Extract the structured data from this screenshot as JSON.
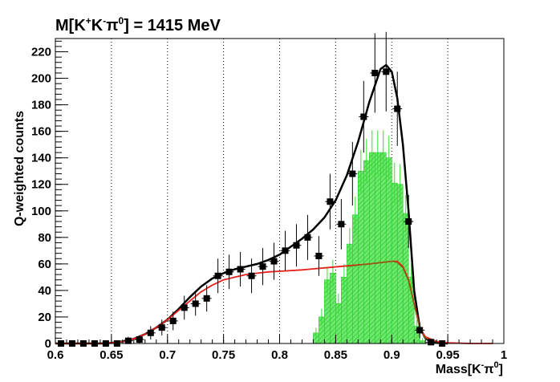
{
  "chart_data": {
    "type": "scatter",
    "title": {
      "base": "M[K",
      "sup1": "+",
      "mid1": "K",
      "sup2": "-",
      "mid2": "π",
      "sup3": "0",
      "end": "] = 1415 MeV"
    },
    "xlabel": {
      "base": "Mass[K",
      "sup1": "-",
      "mid": "π",
      "sup2": "0",
      "end": "]"
    },
    "ylabel": "Q-weighted counts",
    "xlim": [
      0.6,
      1.0
    ],
    "ylim": [
      0,
      230
    ],
    "x_ticks": [
      "0.6",
      "0.65",
      "0.7",
      "0.75",
      "0.8",
      "0.85",
      "0.9",
      "0.95",
      "1"
    ],
    "y_ticks": [
      "0",
      "20",
      "40",
      "60",
      "80",
      "100",
      "120",
      "140",
      "160",
      "180",
      "200",
      "220"
    ],
    "grid": "vertical dotted",
    "colors": {
      "data": "#000000",
      "total_fit": "#000000",
      "background_fit": "#e8201c",
      "histogram": "#33dd33",
      "signal_fit": "#7a6b10"
    },
    "series": [
      {
        "kind": "points",
        "x": [
          0.605,
          0.615,
          0.625,
          0.635,
          0.645,
          0.655,
          0.665,
          0.675,
          0.685,
          0.695,
          0.705,
          0.715,
          0.725,
          0.735,
          0.745,
          0.755,
          0.765,
          0.775,
          0.785,
          0.795,
          0.805,
          0.815,
          0.825,
          0.835,
          0.845,
          0.855,
          0.865,
          0.875,
          0.885,
          0.895,
          0.905,
          0.915,
          0.925,
          0.935,
          0.945
        ],
        "y": [
          0,
          0,
          0,
          0,
          0,
          0,
          2,
          3,
          8,
          12,
          17,
          27,
          30,
          34,
          51,
          54,
          56,
          51,
          58,
          62,
          70,
          74,
          80,
          66,
          107,
          90,
          128,
          171,
          204,
          205,
          177,
          92,
          10,
          1,
          0
        ],
        "yerr": [
          1,
          1,
          1,
          1,
          1,
          1,
          3,
          3,
          5,
          6,
          7,
          9,
          9,
          10,
          13,
          13,
          13,
          13,
          14,
          14,
          15,
          16,
          17,
          15,
          21,
          19,
          24,
          27,
          30,
          30,
          28,
          20,
          6,
          2,
          1
        ]
      },
      {
        "kind": "curve",
        "x": [
          0.6,
          0.64,
          0.65,
          0.66,
          0.67,
          0.68,
          0.69,
          0.7,
          0.71,
          0.72,
          0.73,
          0.74,
          0.75,
          0.76,
          0.77,
          0.78,
          0.79,
          0.8,
          0.81,
          0.82,
          0.83,
          0.84,
          0.85,
          0.86,
          0.87,
          0.88,
          0.89,
          0.895,
          0.9,
          0.905,
          0.91,
          0.915,
          0.92,
          0.925,
          0.93,
          0.935,
          0.94,
          0.95
        ],
        "y": [
          0,
          0,
          0.5,
          1.5,
          3.5,
          7,
          12,
          18,
          26,
          35,
          43,
          49,
          53,
          56,
          58,
          60,
          63,
          67,
          73,
          79,
          86,
          95,
          108,
          127,
          152,
          182,
          207,
          210,
          205,
          185,
          150,
          100,
          40,
          12,
          4,
          1,
          0.5,
          0
        ]
      },
      {
        "kind": "curve",
        "x": [
          0.6,
          0.64,
          0.65,
          0.66,
          0.67,
          0.68,
          0.69,
          0.7,
          0.71,
          0.72,
          0.73,
          0.74,
          0.75,
          0.76,
          0.77,
          0.78,
          0.79,
          0.8,
          0.82,
          0.84,
          0.86,
          0.88,
          0.9,
          0.905,
          0.91,
          0.915,
          0.92,
          0.925,
          0.93,
          0.94,
          0.95,
          0.97,
          0.99
        ],
        "y": [
          0,
          0,
          0.5,
          1.5,
          3.5,
          7,
          12,
          18,
          25,
          32,
          39,
          44,
          48,
          50,
          52,
          53,
          54,
          54.5,
          55.5,
          57,
          58.5,
          60,
          62,
          62,
          58,
          48,
          30,
          12,
          5,
          1.5,
          0.5,
          0,
          0
        ]
      },
      {
        "kind": "histogram",
        "bin_width": 0.005,
        "x": [
          0.8325,
          0.8375,
          0.8425,
          0.8475,
          0.8525,
          0.8575,
          0.8625,
          0.8675,
          0.8725,
          0.8775,
          0.8825,
          0.8875,
          0.8925,
          0.8975,
          0.9025,
          0.9075,
          0.9125,
          0.9175,
          0.9225,
          0.9275
        ],
        "y": [
          8,
          20,
          48,
          53,
          30,
          50,
          75,
          97,
          130,
          138,
          144,
          144,
          144,
          140,
          121,
          120,
          98,
          50,
          13,
          2
        ]
      },
      {
        "kind": "curve",
        "x": [
          0.86,
          0.88,
          0.9,
          0.905,
          0.91,
          0.915,
          0.92,
          0.925,
          0.93,
          0.94
        ],
        "y": [
          58,
          60,
          62,
          61,
          57,
          47,
          29,
          11,
          4,
          1
        ]
      }
    ]
  }
}
